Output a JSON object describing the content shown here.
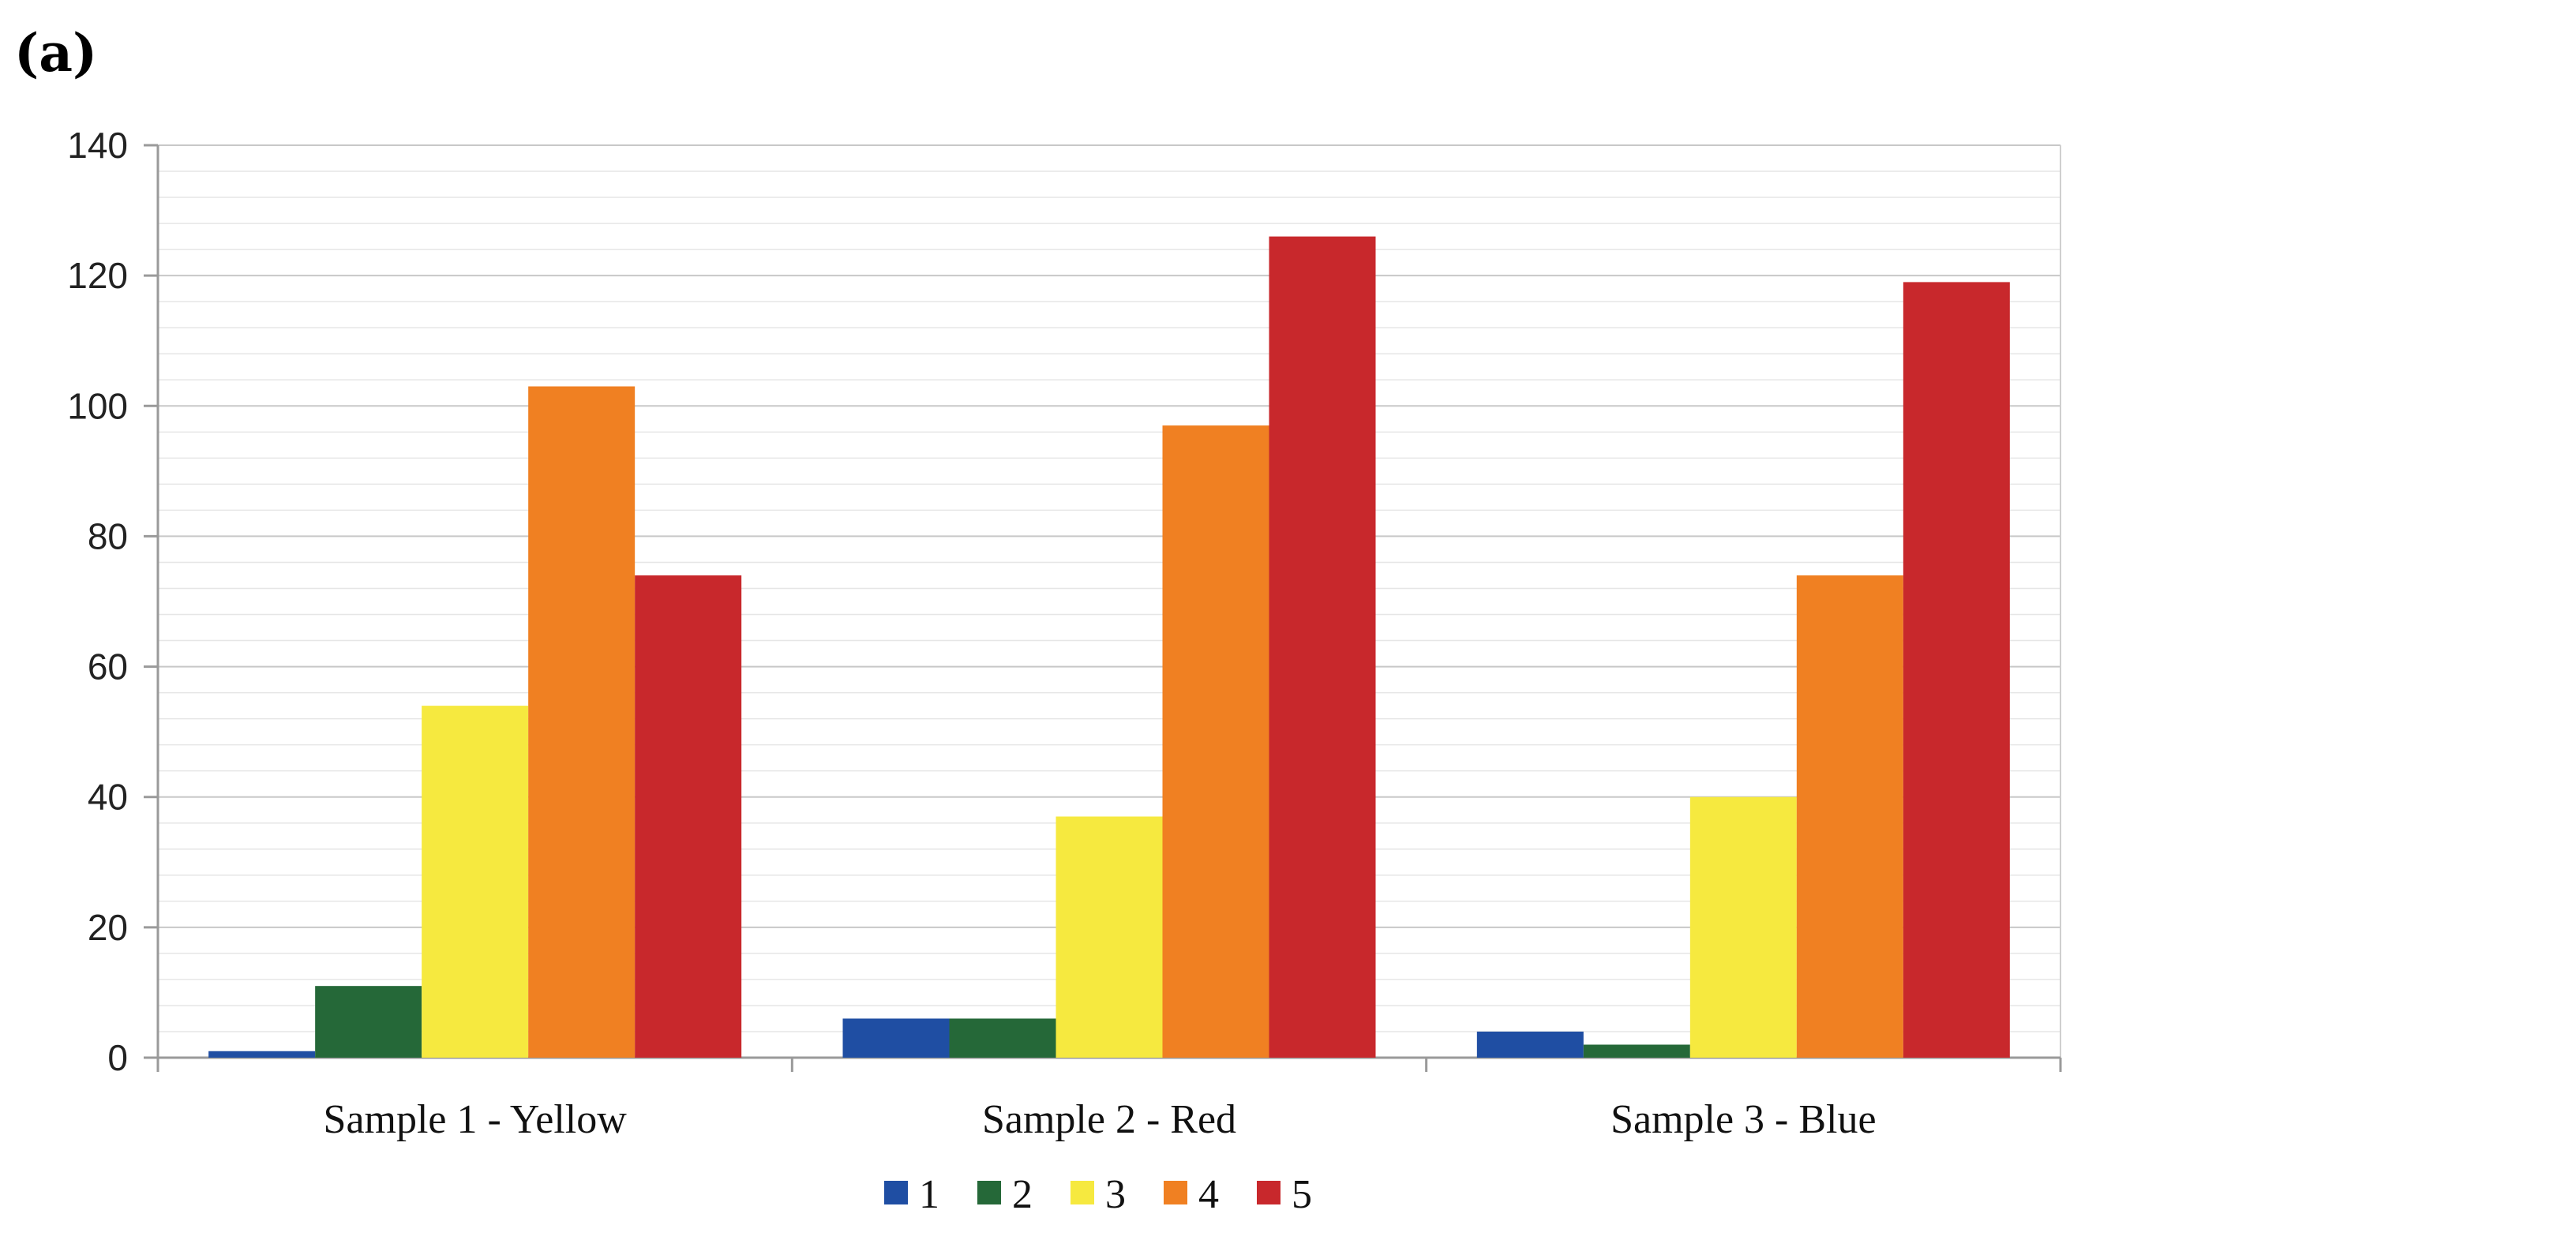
{
  "panel_label": "(a)",
  "chart_data": {
    "type": "bar",
    "title": "",
    "xlabel": "",
    "ylabel": "",
    "categories": [
      "Sample 1 - Yellow",
      "Sample 2 - Red",
      "Sample 3 - Blue"
    ],
    "series": [
      {
        "name": "1",
        "color": "#1f4ea3",
        "values": [
          1,
          6,
          4
        ]
      },
      {
        "name": "2",
        "color": "#256838",
        "values": [
          11,
          6,
          2
        ]
      },
      {
        "name": "3",
        "color": "#f6e93f",
        "values": [
          54,
          37,
          40
        ]
      },
      {
        "name": "4",
        "color": "#f08022",
        "values": [
          103,
          97,
          74
        ]
      },
      {
        "name": "5",
        "color": "#c8282c",
        "values": [
          74,
          126,
          119
        ]
      }
    ],
    "ylim": [
      0,
      140
    ],
    "yticks": [
      0,
      20,
      40,
      60,
      80,
      100,
      120,
      140
    ],
    "grid": true,
    "legend_position": "bottom"
  }
}
